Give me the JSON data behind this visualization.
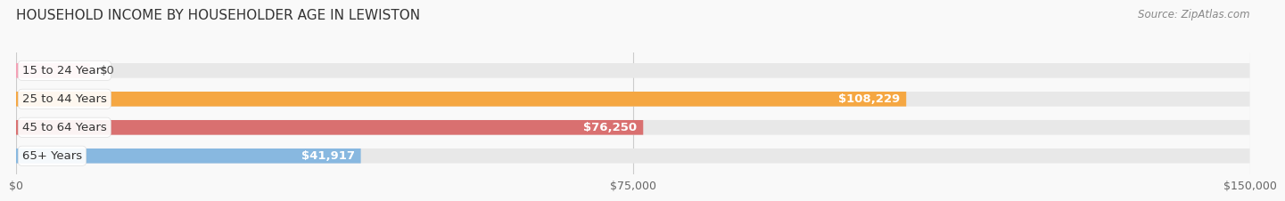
{
  "title": "HOUSEHOLD INCOME BY HOUSEHOLDER AGE IN LEWISTON",
  "source": "Source: ZipAtlas.com",
  "categories": [
    "15 to 24 Years",
    "25 to 44 Years",
    "45 to 64 Years",
    "65+ Years"
  ],
  "values": [
    0,
    108229,
    76250,
    41917
  ],
  "value_labels": [
    "$0",
    "$108,229",
    "$76,250",
    "$41,917"
  ],
  "bar_colors": [
    "#f4a0b5",
    "#f5a742",
    "#d97070",
    "#88b8e0"
  ],
  "bar_bg_color": "#e8e8e8",
  "xlim": [
    0,
    150000
  ],
  "xticks": [
    0,
    75000,
    150000
  ],
  "xtick_labels": [
    "$0",
    "$75,000",
    "$150,000"
  ],
  "title_fontsize": 11,
  "source_fontsize": 8.5,
  "label_fontsize": 9.5,
  "tick_fontsize": 9,
  "bar_height": 0.52,
  "background_color": "#f9f9f9"
}
